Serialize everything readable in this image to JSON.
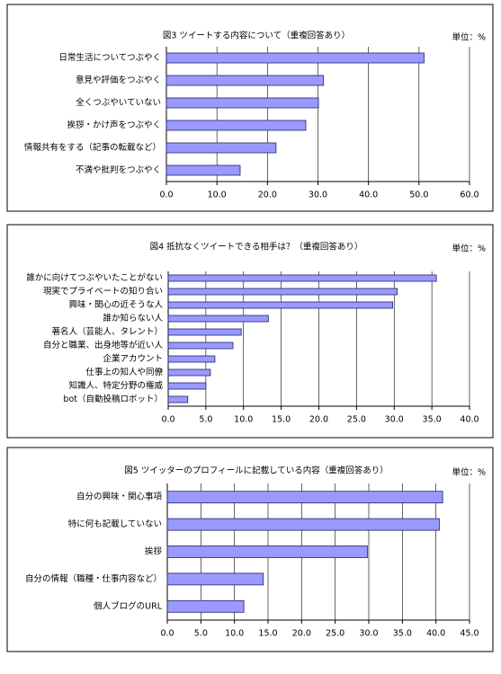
{
  "chart_data": [
    {
      "type": "bar",
      "title": "図3  ツイートする内容について（重複回答あり）",
      "unit": "単位：%",
      "categories": [
        "日常生活についてつぶやく",
        "意見や評価をつぶやく",
        "全くつぶやいていない",
        "挨拶・かけ声をつぶやく",
        "情報共有をする（記事の転載など）",
        "不満や批判をつぶやく"
      ],
      "values": [
        51.0,
        31.1,
        30.1,
        27.6,
        21.7,
        14.6
      ],
      "color": "#9999ff",
      "xlim": [
        0,
        60
      ],
      "xticks": [
        {
          "value": 0,
          "label": "0.0"
        },
        {
          "value": 10,
          "label": "10.0"
        },
        {
          "value": 20,
          "label": "20.0"
        },
        {
          "value": 30,
          "label": "30.0"
        },
        {
          "value": 40,
          "label": "40.0"
        },
        {
          "value": 50,
          "label": "50.0"
        },
        {
          "value": 60,
          "label": "60.0"
        }
      ],
      "grid": true
    },
    {
      "type": "bar",
      "title": "図4  抵抗なくツイートできる相手は？（重複回答あり）",
      "unit": "単位：%",
      "categories": [
        "誰かに向けてつぶやいたことがない",
        "現実でプライベートの知り合い",
        "興味・関心の近そうな人",
        "誰か知らない人",
        "著名人（芸能人、タレント）",
        "自分と職業、出身地等が近い人",
        "企業アカウント",
        "仕事上の知人や同僚",
        "知識人、特定分野の権威",
        "bot（自動投稿ロボット）"
      ],
      "values": [
        35.6,
        30.4,
        29.8,
        13.3,
        9.7,
        8.6,
        6.2,
        5.6,
        5.0,
        2.6
      ],
      "color": "#9999ff",
      "xlim": [
        0,
        40
      ],
      "xticks": [
        {
          "value": 0,
          "label": "0.0"
        },
        {
          "value": 5,
          "label": "5.0"
        },
        {
          "value": 10,
          "label": "10.0"
        },
        {
          "value": 15,
          "label": "15.0"
        },
        {
          "value": 20,
          "label": "20.0"
        },
        {
          "value": 25,
          "label": "25.0"
        },
        {
          "value": 30,
          "label": "30.0"
        },
        {
          "value": 35,
          "label": "35.0"
        },
        {
          "value": 40,
          "label": "40.0"
        }
      ],
      "grid": true
    },
    {
      "type": "bar",
      "title": "図5  ツイッターのプロフィールに記載している内容（重複回答あり）",
      "unit": "単位：%",
      "categories": [
        "自分の興味・関心事項",
        "特に何も記載していない",
        "挨拶",
        "自分の情報（職種・仕事内容など）",
        "個人ブログのURL"
      ],
      "values": [
        41.0,
        40.5,
        29.8,
        14.3,
        11.4
      ],
      "color": "#9999ff",
      "xlim": [
        0,
        45
      ],
      "xticks": [
        {
          "value": 0,
          "label": "0.0"
        },
        {
          "value": 5,
          "label": "5.0"
        },
        {
          "value": 10,
          "label": "10.0"
        },
        {
          "value": 15,
          "label": "15.0"
        },
        {
          "value": 20,
          "label": "20.0"
        },
        {
          "value": 25,
          "label": "25.0"
        },
        {
          "value": 30,
          "label": "30.0"
        },
        {
          "value": 35,
          "label": "35.0"
        },
        {
          "value": 40,
          "label": "40.0"
        },
        {
          "value": 45,
          "label": "45.0"
        }
      ],
      "grid": true
    }
  ]
}
